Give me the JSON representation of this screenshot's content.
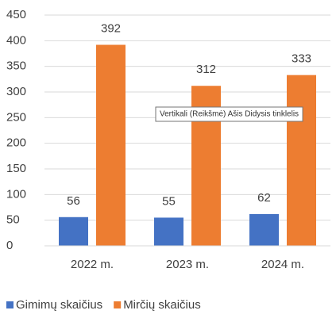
{
  "chart_data": {
    "type": "bar",
    "categories": [
      "2022 m.",
      "2023 m.",
      "2024 m."
    ],
    "series": [
      {
        "name": "Gimimų skaičius",
        "color": "#4472c4",
        "values": [
          56,
          55,
          62
        ]
      },
      {
        "name": "Mirčių skaičius",
        "color": "#ed7d31",
        "values": [
          392,
          312,
          333
        ]
      }
    ],
    "ylim": [
      0,
      450
    ],
    "yticks": [
      0,
      50,
      100,
      150,
      200,
      250,
      300,
      350,
      400,
      450
    ],
    "grid": true,
    "legend": "bottom",
    "tooltip": "Vertikali (Reikšmė) Ašis Didysis tinklelis"
  }
}
